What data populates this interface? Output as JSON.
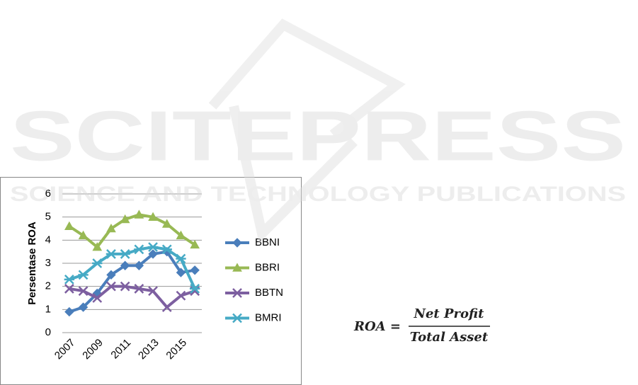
{
  "chart_data": {
    "type": "line",
    "y_label": "Persentase ROA",
    "categories": [
      "2007",
      null,
      "2009",
      null,
      "2011",
      null,
      "2013",
      null,
      "2015",
      null
    ],
    "series": [
      {
        "name": "BBNI",
        "color": "#4a7ebb",
        "marker": "diamond",
        "values": [
          0.9,
          1.1,
          1.7,
          2.5,
          2.9,
          2.9,
          3.4,
          3.5,
          2.6,
          2.7
        ]
      },
      {
        "name": "BBRI",
        "color": "#98b954",
        "marker": "triangle",
        "values": [
          4.6,
          4.2,
          3.7,
          4.5,
          4.9,
          5.1,
          5.0,
          4.7,
          4.2,
          3.8
        ]
      },
      {
        "name": "BBTN",
        "color": "#7d5fa0",
        "marker": "x",
        "values": [
          1.9,
          1.8,
          1.5,
          2.0,
          2.0,
          1.9,
          1.8,
          1.1,
          1.6,
          1.8
        ]
      },
      {
        "name": "BMRI",
        "color": "#46aac5",
        "marker": "asterisk",
        "values": [
          2.3,
          2.5,
          3.0,
          3.4,
          3.4,
          3.6,
          3.7,
          3.6,
          3.2,
          1.9
        ]
      }
    ],
    "ylim": [
      0,
      6
    ],
    "yticks": [
      0,
      1,
      2,
      3,
      4,
      5,
      6
    ],
    "grid": true,
    "legend": "right"
  },
  "watermark": {
    "title": "SCITEPRESS",
    "subtitle": "SCIENCE AND TECHNOLOGY PUBLICATIONS"
  },
  "formula": {
    "lhs": "ROA =",
    "numerator": "Net Profit",
    "denominator": "Total Asset"
  }
}
